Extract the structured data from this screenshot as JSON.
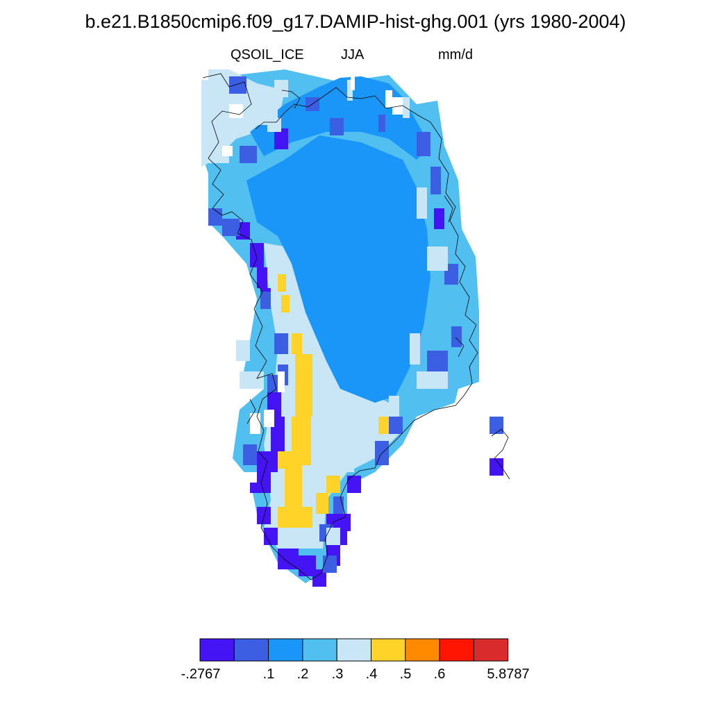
{
  "title": "b.e21.B1850cmip6.f09_g17.DAMIP-hist-ghg.001 (yrs 1980-2004)",
  "subtitle_left": "QSOIL_ICE",
  "subtitle_center": "JJA",
  "subtitle_right": "mm/d",
  "colorbar": {
    "colors": [
      "#4514f5",
      "#3c5ee2",
      "#1a96f8",
      "#52bff1",
      "#c8e6f5",
      "#ffd327",
      "#ff8a00",
      "#ff1500",
      "#d92b2b"
    ],
    "labels": [
      "-.2767",
      ".1",
      ".2",
      ".3",
      ".4",
      ".5",
      ".6",
      "5.8787"
    ]
  }
}
